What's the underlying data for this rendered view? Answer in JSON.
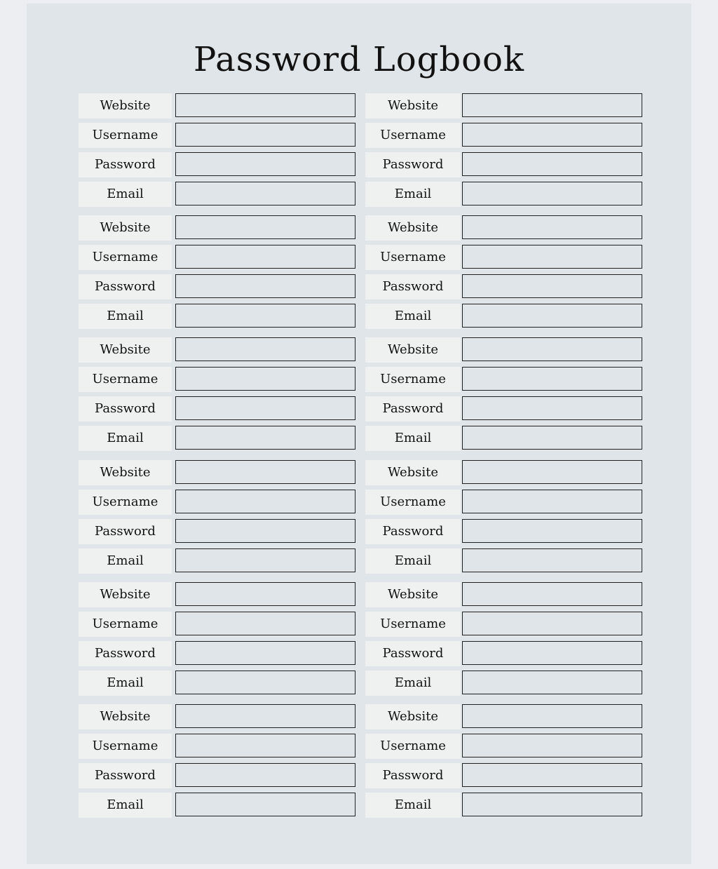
{
  "title": "Password Logbook",
  "field_labels": [
    "Website",
    "Username",
    "Password",
    "Email"
  ],
  "entries": [
    {
      "website": "",
      "username": "",
      "password": "",
      "email": ""
    },
    {
      "website": "",
      "username": "",
      "password": "",
      "email": ""
    },
    {
      "website": "",
      "username": "",
      "password": "",
      "email": ""
    },
    {
      "website": "",
      "username": "",
      "password": "",
      "email": ""
    },
    {
      "website": "",
      "username": "",
      "password": "",
      "email": ""
    },
    {
      "website": "",
      "username": "",
      "password": "",
      "email": ""
    },
    {
      "website": "",
      "username": "",
      "password": "",
      "email": ""
    },
    {
      "website": "",
      "username": "",
      "password": "",
      "email": ""
    },
    {
      "website": "",
      "username": "",
      "password": "",
      "email": ""
    },
    {
      "website": "",
      "username": "",
      "password": "",
      "email": ""
    },
    {
      "website": "",
      "username": "",
      "password": "",
      "email": ""
    },
    {
      "website": "",
      "username": "",
      "password": "",
      "email": ""
    }
  ],
  "colors": {
    "page": "#dfe5e8",
    "label_bg": "#eff0f0",
    "border": "#222222"
  }
}
